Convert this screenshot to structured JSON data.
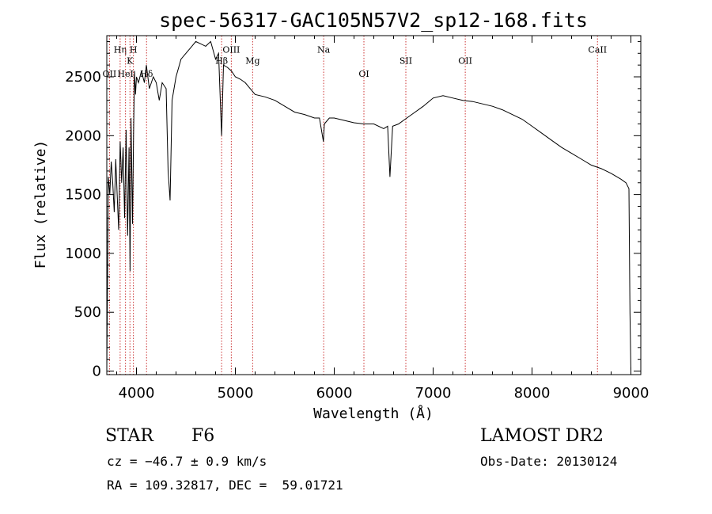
{
  "chart_data": {
    "type": "line",
    "title": "spec-56317-GAC105N57V2_sp12-168.fits",
    "xlabel": "Wavelength (Å)",
    "ylabel": "Flux (relative)",
    "xlim": [
      3700,
      9100
    ],
    "ylim": [
      -30,
      2850
    ],
    "xticks": [
      4000,
      5000,
      6000,
      7000,
      8000,
      9000
    ],
    "yticks": [
      0,
      500,
      1000,
      1500,
      2000,
      2500
    ],
    "series": [
      {
        "x": [
          3700,
          3715,
          3730,
          3745,
          3760,
          3775,
          3790,
          3805,
          3820,
          3835,
          3850,
          3865,
          3880,
          3895,
          3910,
          3925,
          3935,
          3945,
          3960,
          3970,
          3980,
          3990,
          4000,
          4020,
          4050,
          4080,
          4100,
          4130,
          4170,
          4200,
          4230,
          4260,
          4300,
          4320,
          4340,
          4360,
          4400,
          4450,
          4500,
          4550,
          4600,
          4650,
          4700,
          4750,
          4800,
          4830,
          4861,
          4880,
          4920,
          4960,
          5000,
          5050,
          5100,
          5150,
          5200,
          5300,
          5400,
          5500,
          5600,
          5700,
          5800,
          5850,
          5890,
          5900,
          5950,
          6000,
          6100,
          6200,
          6300,
          6400,
          6500,
          6540,
          6563,
          6590,
          6650,
          6700,
          6800,
          6900,
          7000,
          7100,
          7200,
          7300,
          7400,
          7500,
          7600,
          7700,
          7800,
          7900,
          8000,
          8100,
          8200,
          8300,
          8400,
          8500,
          8600,
          8700,
          8800,
          8900,
          8950,
          8980,
          8990,
          9000
        ],
        "y": [
          0,
          1650,
          1500,
          1780,
          1600,
          1350,
          1800,
          1500,
          1200,
          1950,
          1600,
          1900,
          1300,
          2050,
          1150,
          1900,
          850,
          2150,
          1250,
          2000,
          2550,
          2350,
          2500,
          2450,
          2550,
          2450,
          2600,
          2400,
          2500,
          2450,
          2300,
          2450,
          2400,
          1700,
          1450,
          2300,
          2500,
          2650,
          2700,
          2750,
          2800,
          2780,
          2760,
          2800,
          2650,
          2700,
          2000,
          2600,
          2580,
          2550,
          2500,
          2480,
          2450,
          2400,
          2350,
          2330,
          2300,
          2250,
          2200,
          2180,
          2150,
          2150,
          1950,
          2100,
          2150,
          2150,
          2130,
          2110,
          2100,
          2100,
          2060,
          2080,
          1650,
          2080,
          2100,
          2130,
          2190,
          2250,
          2320,
          2340,
          2320,
          2300,
          2290,
          2270,
          2250,
          2220,
          2180,
          2140,
          2080,
          2020,
          1960,
          1900,
          1850,
          1800,
          1750,
          1720,
          1680,
          1630,
          1600,
          1550,
          500,
          0
        ],
        "color": "#000000"
      }
    ],
    "lines": [
      {
        "label": "Hη",
        "x": 3835,
        "text_y": 2705
      },
      {
        "label": "OII",
        "x": 3727,
        "text_y": 2500
      },
      {
        "label": "H",
        "x": 3969,
        "text_y": 2705
      },
      {
        "label": "K",
        "x": 3934,
        "text_y": 2610
      },
      {
        "label": "HeI",
        "x": 3889,
        "text_y": 2500
      },
      {
        "label": "Hδ",
        "x": 4102,
        "text_y": 2500
      },
      {
        "label": "OIII",
        "x": 4959,
        "text_y": 2705
      },
      {
        "label": "Hβ",
        "x": 4861,
        "text_y": 2610
      },
      {
        "label": "Mg",
        "x": 5175,
        "text_y": 2610
      },
      {
        "label": "Na",
        "x": 5893,
        "text_y": 2705
      },
      {
        "label": "OI",
        "x": 6300,
        "text_y": 2500
      },
      {
        "label": "OII",
        "x": 7325,
        "text_y": 2610
      },
      {
        "label": "SII",
        "x": 6724,
        "text_y": 2610
      },
      {
        "label": "CaII",
        "x": 8662,
        "text_y": 2705
      }
    ],
    "line_color": "#cc3333"
  },
  "info": {
    "object_type": "STAR",
    "subclass": "F6",
    "survey": "LAMOST DR2",
    "cz": "cz = −46.7 ± 0.9 km/s",
    "obs_date": "Obs-Date: 20130124",
    "coords": "RA = 109.32817, DEC =  59.01721"
  }
}
